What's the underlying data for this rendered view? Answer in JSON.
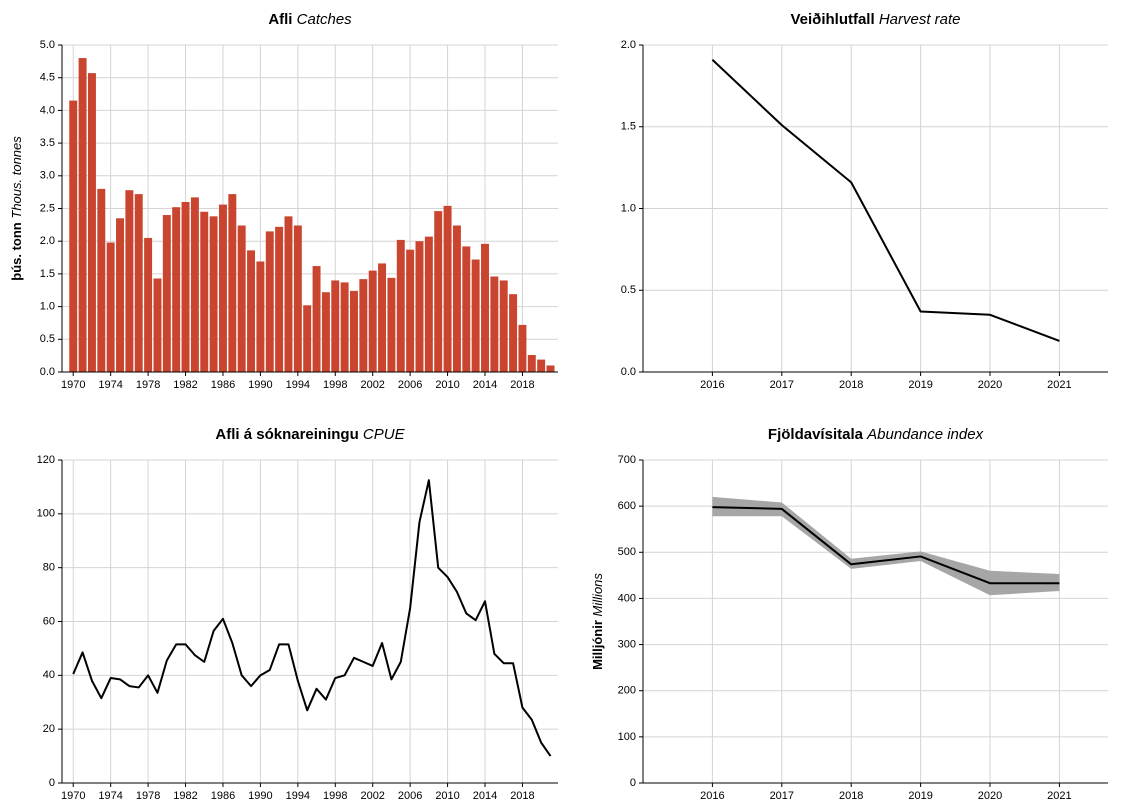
{
  "chart_data": [
    {
      "type": "bar",
      "title": "Afli",
      "title_en": "Catches",
      "ylabel": "þús. tonn",
      "ylabel_en": "Thous. tonnes",
      "color": "#c9452f",
      "x": [
        1970,
        1971,
        1972,
        1973,
        1974,
        1975,
        1976,
        1977,
        1978,
        1979,
        1980,
        1981,
        1982,
        1983,
        1984,
        1985,
        1986,
        1987,
        1988,
        1989,
        1990,
        1991,
        1992,
        1993,
        1994,
        1995,
        1996,
        1997,
        1998,
        1999,
        2000,
        2001,
        2002,
        2003,
        2004,
        2005,
        2006,
        2007,
        2008,
        2009,
        2010,
        2011,
        2012,
        2013,
        2014,
        2015,
        2016,
        2017,
        2018,
        2019,
        2020,
        2021
      ],
      "values": [
        4.15,
        4.8,
        4.57,
        2.8,
        1.98,
        2.35,
        2.78,
        2.72,
        2.05,
        1.43,
        2.4,
        2.52,
        2.6,
        2.67,
        2.45,
        2.38,
        2.56,
        2.72,
        2.24,
        1.86,
        1.69,
        2.15,
        2.22,
        2.38,
        2.24,
        1.02,
        1.62,
        1.22,
        1.4,
        1.37,
        1.24,
        1.42,
        1.55,
        1.66,
        1.44,
        2.02,
        1.87,
        2.0,
        2.07,
        2.46,
        2.54,
        2.24,
        1.92,
        1.72,
        1.96,
        1.46,
        1.4,
        1.19,
        0.72,
        0.26,
        0.19,
        0.1
      ],
      "xlim": [
        1968.8,
        2021.8
      ],
      "xticks": [
        1970,
        1974,
        1978,
        1982,
        1986,
        1990,
        1994,
        1998,
        2002,
        2006,
        2010,
        2014,
        2018
      ],
      "ylim": [
        0,
        5
      ],
      "yticks": [
        {
          "value": 0,
          "label": "0.0"
        },
        0.5,
        {
          "value": 1,
          "label": "1.0"
        },
        1.5,
        {
          "value": 2,
          "label": "2.0"
        },
        2.5,
        {
          "value": 3,
          "label": "3.0"
        },
        3.5,
        {
          "value": 4,
          "label": "4.0"
        },
        4.5,
        {
          "value": 5,
          "label": "5.0"
        }
      ],
      "grid": true
    },
    {
      "type": "line",
      "title": "Veiðihlutfall",
      "title_en": "Harvest rate",
      "color": "#000000",
      "x": [
        2016,
        2017,
        2018,
        2019,
        2020,
        2021
      ],
      "values": [
        1.91,
        1.51,
        1.16,
        0.37,
        0.35,
        0.19
      ],
      "xlim": [
        2015,
        2021.7
      ],
      "xticks": [
        2016,
        2017,
        2018,
        2019,
        2020,
        2021
      ],
      "ylim": [
        0,
        2
      ],
      "yticks": [
        {
          "value": 0,
          "label": "0.0"
        },
        0.5,
        {
          "value": 1,
          "label": "1.0"
        },
        1.5,
        {
          "value": 2,
          "label": "2.0"
        }
      ],
      "grid": true
    },
    {
      "type": "line",
      "title": "Afli á sóknareiningu",
      "title_en": "CPUE",
      "color": "#000000",
      "x": [
        1970,
        1971,
        1972,
        1973,
        1974,
        1975,
        1976,
        1977,
        1978,
        1979,
        1980,
        1981,
        1982,
        1983,
        1984,
        1985,
        1986,
        1987,
        1988,
        1989,
        1990,
        1991,
        1992,
        1993,
        1994,
        1995,
        1996,
        1997,
        1998,
        1999,
        2000,
        2001,
        2002,
        2003,
        2004,
        2005,
        2006,
        2007,
        2008,
        2009,
        2010,
        2011,
        2012,
        2013,
        2014,
        2015,
        2016,
        2017,
        2018,
        2019,
        2020,
        2021
      ],
      "values": [
        40.5,
        48.5,
        38,
        31.5,
        39,
        38.5,
        36,
        35.5,
        40,
        33.5,
        45.5,
        51.5,
        51.5,
        47.5,
        45,
        56.5,
        61,
        52,
        40,
        36,
        40,
        42,
        51.5,
        51.5,
        38,
        27,
        35,
        31,
        39,
        40,
        46.5,
        45,
        43.5,
        52,
        38.5,
        45,
        65,
        97,
        112.5,
        80,
        76.5,
        71,
        63,
        60.5,
        67.5,
        48,
        44.5,
        44.5,
        28,
        23.5,
        15,
        10
      ],
      "xlim": [
        1968.8,
        2021.8
      ],
      "xticks": [
        1970,
        1974,
        1978,
        1982,
        1986,
        1990,
        1994,
        1998,
        2002,
        2006,
        2010,
        2014,
        2018
      ],
      "ylim": [
        0,
        120
      ],
      "yticks": [
        0,
        20,
        40,
        60,
        80,
        100,
        120
      ],
      "grid": true
    },
    {
      "type": "line",
      "title": "Fjöldavísitala",
      "title_en": "Abundance index",
      "ylabel": "Milljónir",
      "ylabel_en": "Millions",
      "color": "#000000",
      "band_color": "#a6a6a6",
      "x": [
        2016,
        2017,
        2018,
        2019,
        2020,
        2021
      ],
      "values": [
        598,
        594,
        474,
        491,
        433,
        433
      ],
      "lower": [
        578,
        578,
        464,
        481,
        407,
        416
      ],
      "upper": [
        620,
        608,
        486,
        502,
        460,
        453
      ],
      "xlim": [
        2015,
        2021.7
      ],
      "xticks": [
        2016,
        2017,
        2018,
        2019,
        2020,
        2021
      ],
      "ylim": [
        0,
        700
      ],
      "yticks": [
        0,
        100,
        200,
        300,
        400,
        500,
        600,
        700
      ],
      "grid": true
    }
  ]
}
